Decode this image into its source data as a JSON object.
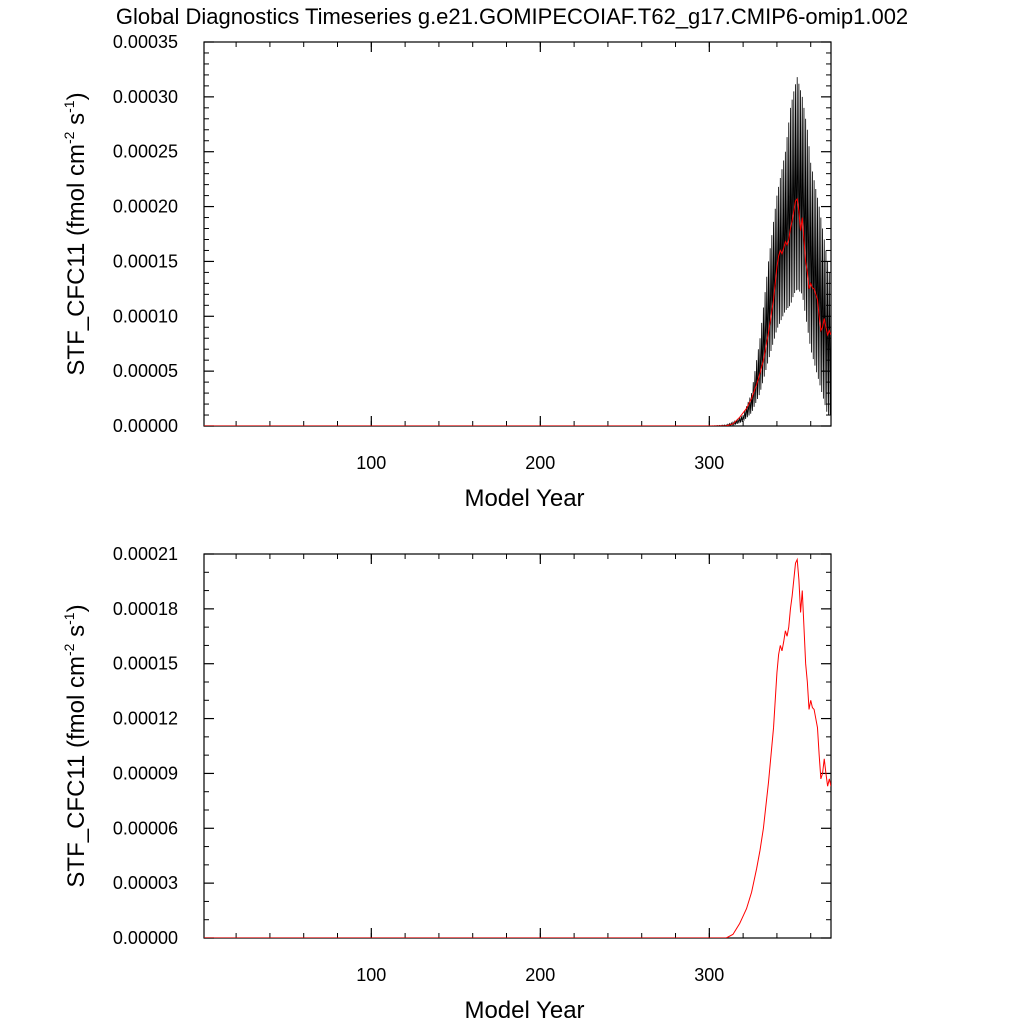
{
  "page_title": "Global Diagnostics Timeseries g.e21.GOMIPECOIAF.T62_g17.CMIP6-omip1.002",
  "colors": {
    "monthly": "#000000",
    "annual": "#ff0000",
    "frame": "#000000"
  },
  "chart_data": [
    {
      "type": "line",
      "xlabel": "Model Year",
      "ylabel_parts": {
        "base": "STF_CFC11 (fmol cm",
        "sup1": "-2",
        "mid": " s",
        "sup2": "-1",
        "end": ")"
      },
      "xlim": [
        1,
        372
      ],
      "ylim": [
        0,
        0.00035
      ],
      "xticks": [
        100,
        200,
        300
      ],
      "yticks": [
        "0.00000",
        "0.00005",
        "0.00010",
        "0.00015",
        "0.00020",
        "0.00025",
        "0.00030",
        "0.00035"
      ],
      "yminor_per_major": 5,
      "xminor_step": 20,
      "series": [
        {
          "style": "monthly-oscillating",
          "color": "#000000",
          "envelope_x": [
            300,
            310,
            315,
            320,
            325,
            330,
            335,
            340,
            345,
            348,
            350,
            352,
            355,
            358,
            360,
            365,
            370,
            372
          ],
          "envelope_low": [
            0,
            0,
            1e-06,
            4e-06,
            1.2e-05,
            3e-05,
            6e-05,
            8.8e-05,
            0.000105,
            0.00011,
            0.00012,
            0.000125,
            0.00012,
            9e-05,
            7e-05,
            4e-05,
            1e-05,
            1e-05
          ],
          "envelope_high": [
            0,
            1e-06,
            4e-06,
            1e-05,
            3e-05,
            8e-05,
            0.00015,
            0.00021,
            0.00025,
            0.00029,
            0.000305,
            0.000318,
            0.0003,
            0.00027,
            0.00024,
            0.0002,
            0.00015,
            0.00013
          ]
        },
        {
          "style": "annual-mean",
          "color": "#ff0000",
          "x": [
            300,
            305,
            310,
            314,
            318,
            320,
            322,
            325,
            328,
            330,
            332,
            335,
            338,
            340,
            341,
            342,
            343,
            344,
            345,
            346,
            347,
            348,
            349,
            350,
            351,
            352,
            353,
            354,
            355,
            356,
            357,
            358,
            359,
            360,
            361,
            362,
            363,
            364,
            365,
            366,
            367,
            368,
            369,
            370,
            371,
            372
          ],
          "y": [
            0,
            0,
            0,
            2e-06,
            8e-06,
            1.2e-05,
            1.6e-05,
            2.5e-05,
            3.8e-05,
            4.8e-05,
            6e-05,
            8.5e-05,
            0.000115,
            0.000145,
            0.000155,
            0.00016,
            0.000157,
            0.000162,
            0.000168,
            0.000165,
            0.00017,
            0.00018,
            0.000187,
            0.000196,
            0.000205,
            0.000207,
            0.000196,
            0.000178,
            0.00019,
            0.00017,
            0.00015,
            0.00014,
            0.000125,
            0.00013,
            0.000126,
            0.000125,
            0.00012,
            0.000115,
            0.0001,
            8.7e-05,
            9e-05,
            9.8e-05,
            9e-05,
            8.3e-05,
            8.7e-05,
            8.3e-05
          ]
        }
      ]
    },
    {
      "type": "line",
      "xlabel": "Model Year",
      "ylabel_parts": {
        "base": "STF_CFC11 (fmol cm",
        "sup1": "-2",
        "mid": " s",
        "sup2": "-1",
        "end": ")"
      },
      "xlim": [
        1,
        372
      ],
      "ylim": [
        0,
        0.00021
      ],
      "xticks": [
        100,
        200,
        300
      ],
      "yticks": [
        "0.00000",
        "0.00003",
        "0.00006",
        "0.00009",
        "0.00012",
        "0.00015",
        "0.00018",
        "0.00021"
      ],
      "yminor_per_major": 3,
      "xminor_step": 20,
      "series": [
        {
          "style": "annual-mean",
          "color": "#ff0000",
          "x": [
            300,
            305,
            310,
            314,
            318,
            320,
            322,
            325,
            328,
            330,
            332,
            335,
            338,
            340,
            341,
            342,
            343,
            344,
            345,
            346,
            347,
            348,
            349,
            350,
            351,
            352,
            353,
            354,
            355,
            356,
            357,
            358,
            359,
            360,
            361,
            362,
            363,
            364,
            365,
            366,
            367,
            368,
            369,
            370,
            371,
            372
          ],
          "y": [
            0,
            0,
            0,
            2e-06,
            8e-06,
            1.2e-05,
            1.6e-05,
            2.5e-05,
            3.8e-05,
            4.8e-05,
            6e-05,
            8.5e-05,
            0.000115,
            0.000145,
            0.000155,
            0.00016,
            0.000157,
            0.000162,
            0.000168,
            0.000165,
            0.00017,
            0.00018,
            0.000187,
            0.000196,
            0.000205,
            0.000207,
            0.000196,
            0.000178,
            0.00019,
            0.00017,
            0.00015,
            0.00014,
            0.000125,
            0.00013,
            0.000126,
            0.000125,
            0.00012,
            0.000115,
            0.0001,
            8.7e-05,
            9e-05,
            9.8e-05,
            9e-05,
            8.3e-05,
            8.7e-05,
            8.3e-05
          ]
        }
      ]
    }
  ]
}
